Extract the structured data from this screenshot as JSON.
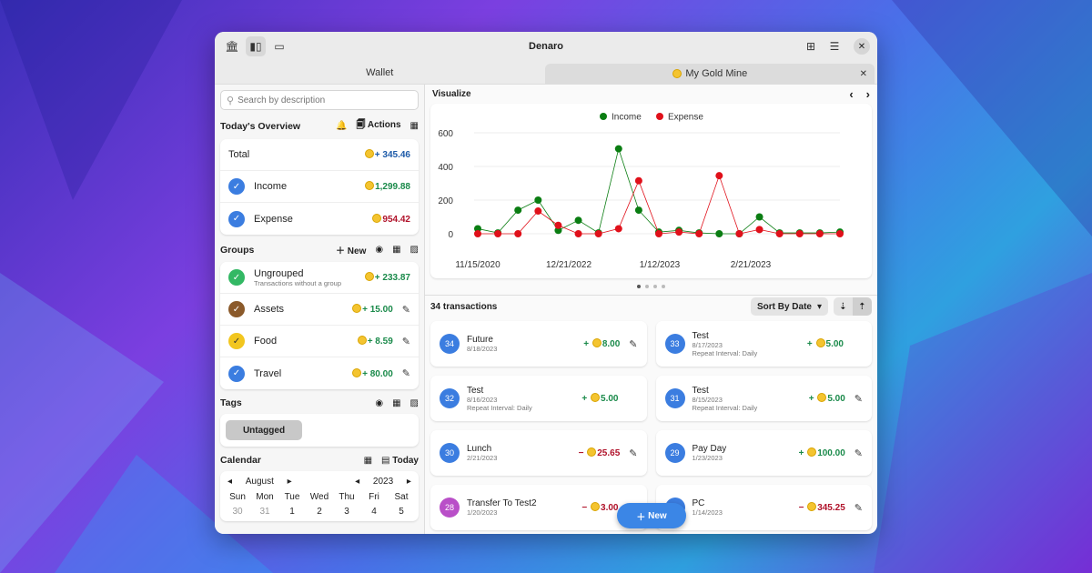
{
  "window": {
    "title": "Denaro"
  },
  "tabs": [
    {
      "label": "Wallet"
    },
    {
      "label": "My Gold Mine"
    }
  ],
  "search": {
    "placeholder": "Search by description"
  },
  "overview": {
    "title": "Today's Overview",
    "actions_label": "Actions",
    "total_label": "Total",
    "total_value": "+ 345.46",
    "income_label": "Income",
    "income_value": "1,299.88",
    "expense_label": "Expense",
    "expense_value": "954.42"
  },
  "groups": {
    "title": "Groups",
    "new_label": "New",
    "items": [
      {
        "name": "Ungrouped",
        "sub": "Transactions without a group",
        "value": "+ 233.87",
        "color": "#33b864"
      },
      {
        "name": "Assets",
        "value": "+ 15.00",
        "color": "#8b5a2b"
      },
      {
        "name": "Food",
        "value": "+ 8.59",
        "color": "#f2c61f"
      },
      {
        "name": "Travel",
        "value": "+ 80.00",
        "color": "#3b7de0"
      }
    ]
  },
  "tags": {
    "title": "Tags",
    "untagged": "Untagged"
  },
  "calendar": {
    "title": "Calendar",
    "today_label": "Today",
    "month": "August",
    "year": "2023",
    "weekdays": [
      "Sun",
      "Mon",
      "Tue",
      "Wed",
      "Thu",
      "Fri",
      "Sat"
    ],
    "days": [
      "30",
      "31",
      "1",
      "2",
      "3",
      "4",
      "5"
    ]
  },
  "visualize": {
    "title": "Visualize"
  },
  "chart_data": {
    "type": "line",
    "legend": [
      "Income",
      "Expense"
    ],
    "ylim": [
      0,
      600
    ],
    "yticks": [
      "600",
      "400",
      "200",
      "0"
    ],
    "xticks": [
      "11/15/2020",
      "12/21/2022",
      "1/12/2023",
      "2/21/2023"
    ],
    "series": [
      {
        "name": "Income",
        "color": "#0a7d12",
        "values": [
          30,
          5,
          140,
          200,
          20,
          80,
          5,
          505,
          140,
          10,
          20,
          5,
          0,
          0,
          100,
          5,
          5,
          5,
          10
        ]
      },
      {
        "name": "Expense",
        "color": "#e0101a",
        "values": [
          0,
          0,
          0,
          135,
          50,
          0,
          0,
          30,
          315,
          0,
          10,
          0,
          345,
          0,
          25,
          0,
          0,
          0,
          0
        ]
      }
    ]
  },
  "transactions": {
    "count_label": "34 transactions",
    "sort_label": "Sort By Date",
    "items": [
      {
        "id": "34",
        "name": "Future",
        "date": "8/18/2023",
        "value": "8.00",
        "sign": "+",
        "edit": true
      },
      {
        "id": "33",
        "name": "Test",
        "date": "8/17/2023",
        "sub": "Repeat Interval: Daily",
        "value": "5.00",
        "sign": "+",
        "edit": false
      },
      {
        "id": "32",
        "name": "Test",
        "date": "8/16/2023",
        "sub": "Repeat Interval: Daily",
        "value": "5.00",
        "sign": "+",
        "edit": false
      },
      {
        "id": "31",
        "name": "Test",
        "date": "8/15/2023",
        "sub": "Repeat Interval: Daily",
        "value": "5.00",
        "sign": "+",
        "edit": true
      },
      {
        "id": "30",
        "name": "Lunch",
        "date": "2/21/2023",
        "value": "25.65",
        "sign": "−",
        "edit": true
      },
      {
        "id": "29",
        "name": "Pay Day",
        "date": "1/23/2023",
        "value": "100.00",
        "sign": "+",
        "edit": true
      },
      {
        "id": "28",
        "name": "Transfer To Test2",
        "date": "1/20/2023",
        "value": "3.00",
        "sign": "−",
        "edit": false,
        "color": "#b94fc8"
      },
      {
        "id": "27",
        "name": "PC",
        "date": "1/14/2023",
        "value": "345.25",
        "sign": "−",
        "edit": true
      }
    ]
  },
  "fab": {
    "label": "New"
  }
}
